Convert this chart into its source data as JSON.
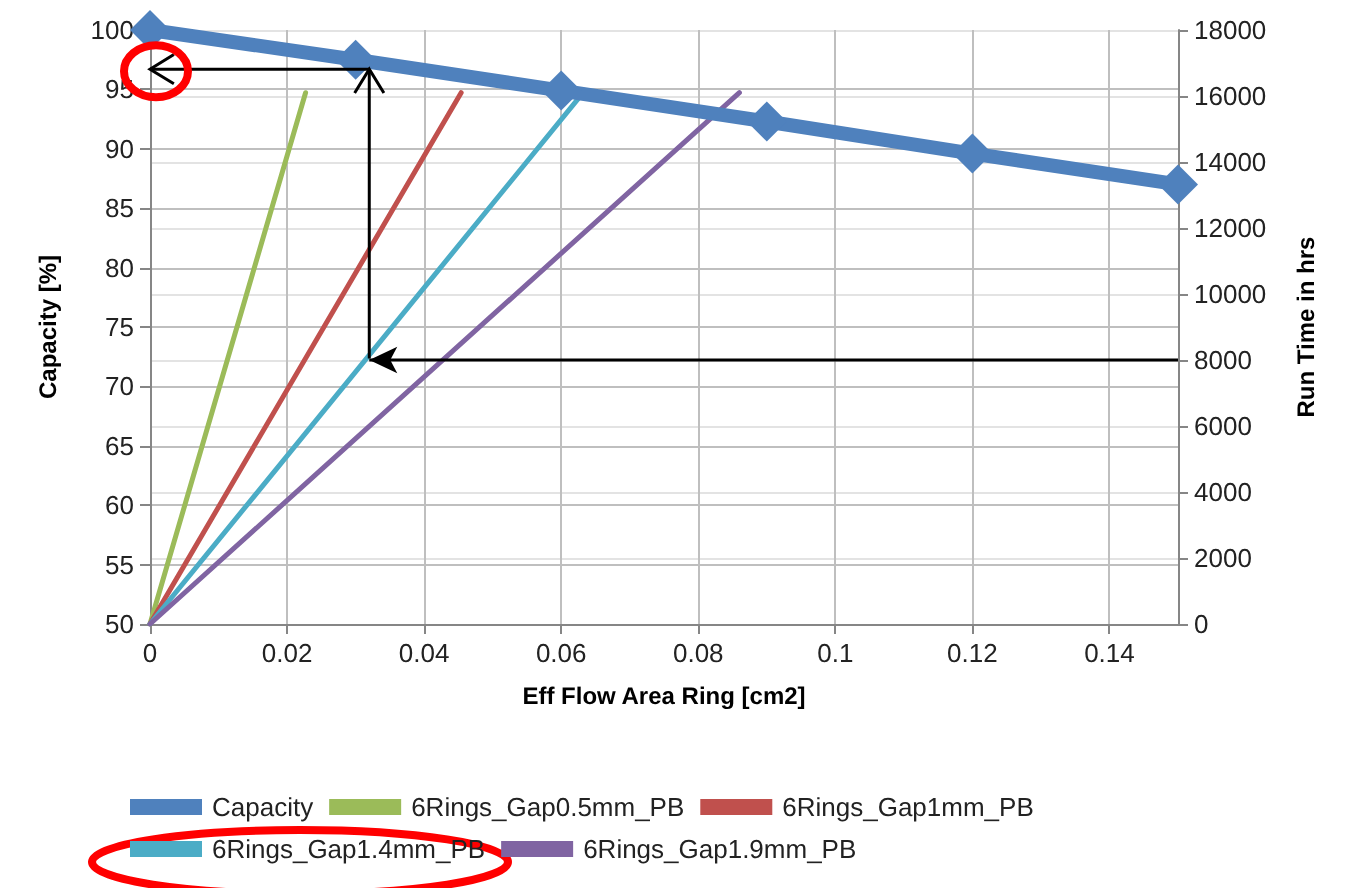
{
  "chart_data": {
    "type": "line",
    "xlabel": "Eff Flow Area Ring [cm2]",
    "ylabel": "Capacity [%]",
    "y2label": "Run Time in hrs",
    "xlim": [
      0,
      0.15
    ],
    "xticks": [
      0,
      0.02,
      0.04,
      0.06,
      0.08,
      0.1,
      0.12,
      0.14
    ],
    "ylim": [
      50,
      100
    ],
    "yticks": [
      50,
      55,
      60,
      65,
      70,
      75,
      80,
      85,
      90,
      95,
      100
    ],
    "y2lim": [
      0,
      18000
    ],
    "y2ticks": [
      0,
      2000,
      4000,
      6000,
      8000,
      10000,
      12000,
      14000,
      16000,
      18000
    ],
    "grid": true,
    "legend": "bottom",
    "ref_lines": [
      {
        "axis": "y2",
        "value": 8000,
        "color": "#000000"
      }
    ],
    "series": [
      {
        "name": "Capacity",
        "color": "#4f81bd",
        "marker": "diamond",
        "x": [
          0,
          0.03,
          0.06,
          0.09,
          0.12,
          0.15
        ],
        "values": [
          100,
          97.5,
          94.9,
          92.3,
          89.6,
          87
        ]
      },
      {
        "name": "6Rings_Gap0.5mm_PB",
        "color": "#9bbb59",
        "marker": "none",
        "axis": "y2",
        "x": [
          0,
          0.0227
        ],
        "values": [
          0,
          16100
        ]
      },
      {
        "name": "6Rings_Gap1mm_PB",
        "color": "#c0504d",
        "marker": "none",
        "axis": "y2",
        "x": [
          0,
          0.0454
        ],
        "values": [
          0,
          16100
        ]
      },
      {
        "name": "6Rings_Gap1.4mm_PB",
        "color": "#4bacc6",
        "marker": "none",
        "axis": "y2",
        "x": [
          0,
          0.0632
        ],
        "values": [
          0,
          16100
        ]
      },
      {
        "name": "6Rings_Gap1.9mm_PB",
        "color": "#8064a2",
        "marker": "none",
        "axis": "y2",
        "x": [
          0,
          0.086
        ],
        "values": [
          0,
          16100
        ]
      }
    ]
  }
}
